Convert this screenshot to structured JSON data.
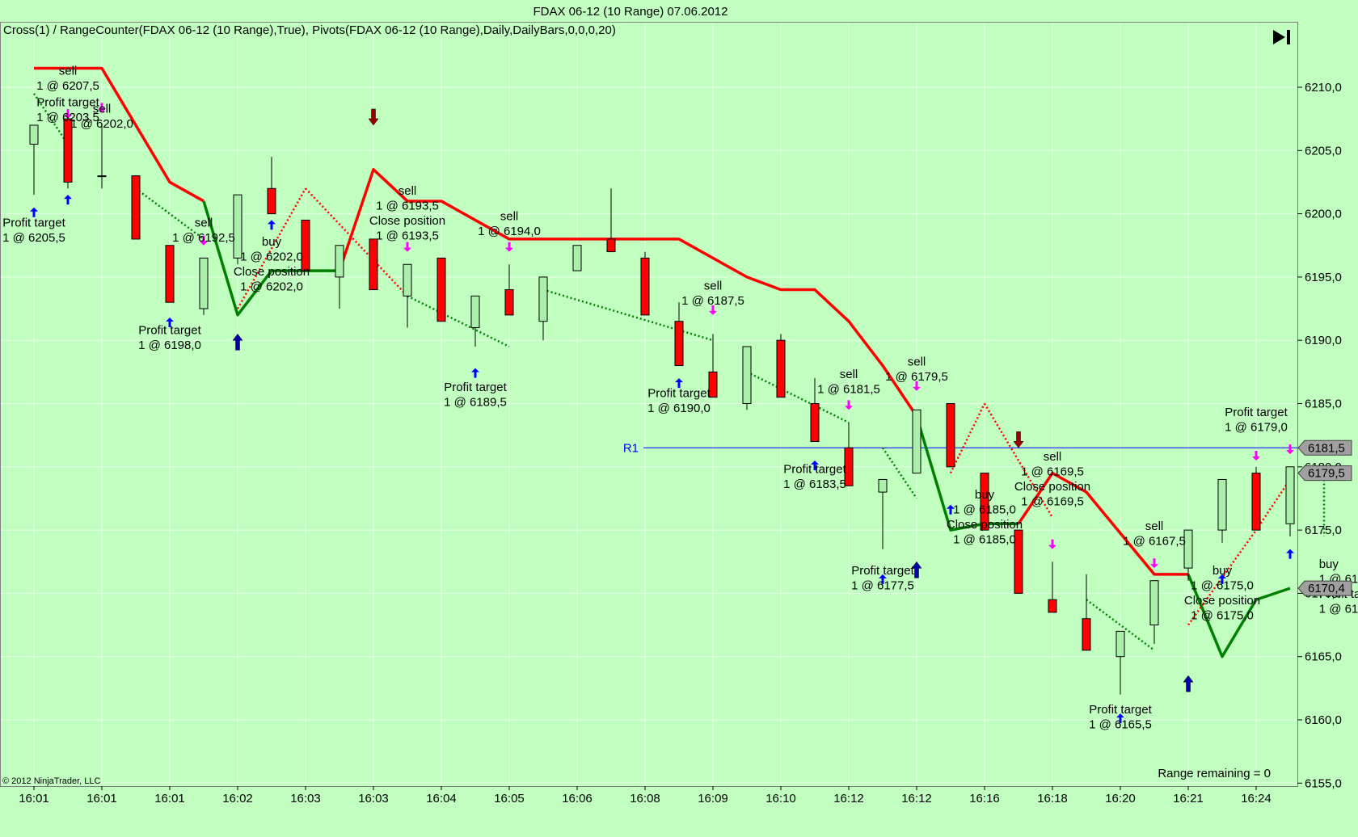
{
  "window_title": "FDAX 06-12 (10 Range)  07.06.2012",
  "indicator_label": "Cross(1) / RangeCounter(FDAX 06-12 (10 Range),True), Pivots(FDAX 06-12 (10 Range),Daily,DailyBars,0,0,0,20)",
  "copyright": "© 2012 NinjaTrader, LLC",
  "range_remaining": "Range remaining = 0",
  "play_button_icon": "skip-to-end-icon",
  "colors": {
    "background": "#c0ffc0",
    "up_bar": "#aaf0aa",
    "down_bar": "#ff0000",
    "line_red": "#ff0000",
    "line_green": "#008000",
    "pivot_line": "#0000ff",
    "sell_arrow": "#ff00ff",
    "buy_arrow": "#0000ff",
    "entry_arrow_red": "#990000"
  },
  "chart_data": {
    "type": "candlestick",
    "title": "FDAX 06-12 (10 Range)  07.06.2012",
    "ylim": [
      6155.0,
      6213.5
    ],
    "y_ticks": [
      "6155,0",
      "6160,0",
      "6165,0",
      "6170,0",
      "6175,0",
      "6180,0",
      "6185,0",
      "6190,0",
      "6195,0",
      "6200,0",
      "6205,0",
      "6210,0"
    ],
    "y_tick_values": [
      6155,
      6160,
      6165,
      6170,
      6175,
      6180,
      6185,
      6190,
      6195,
      6200,
      6205,
      6210
    ],
    "x_ticks": [
      "16:01",
      "16:01",
      "16:01",
      "16:02",
      "16:03",
      "16:03",
      "16:04",
      "16:05",
      "16:06",
      "16:08",
      "16:09",
      "16:10",
      "16:12",
      "16:12",
      "16:16",
      "16:18",
      "16:20",
      "16:21",
      "16:24"
    ],
    "x_tick_bars": [
      0,
      2,
      4,
      6,
      8,
      10,
      12,
      14,
      16,
      18,
      20,
      22,
      24,
      26,
      28,
      30,
      32,
      34,
      36
    ],
    "candles": [
      {
        "o": 6205.5,
        "h": 6207.0,
        "l": 6201.5,
        "c": 6207.0
      },
      {
        "o": 6207.5,
        "h": 6207.5,
        "l": 6202.0,
        "c": 6202.5
      },
      {
        "o": 6203.0,
        "h": 6207.0,
        "l": 6202.0,
        "c": 6203.0
      },
      {
        "o": 6203.0,
        "h": 6203.0,
        "l": 6198.0,
        "c": 6198.0
      },
      {
        "o": 6197.5,
        "h": 6197.5,
        "l": 6193.0,
        "c": 6193.0
      },
      {
        "o": 6192.5,
        "h": 6196.5,
        "l": 6192.0,
        "c": 6196.5
      },
      {
        "o": 6196.5,
        "h": 6201.5,
        "l": 6196.0,
        "c": 6201.5
      },
      {
        "o": 6202.0,
        "h": 6204.5,
        "l": 6200.0,
        "c": 6200.0
      },
      {
        "o": 6199.5,
        "h": 6199.5,
        "l": 6195.5,
        "c": 6195.5
      },
      {
        "o": 6195.0,
        "h": 6197.5,
        "l": 6192.5,
        "c": 6197.5
      },
      {
        "o": 6198.0,
        "h": 6198.0,
        "l": 6194.0,
        "c": 6194.0
      },
      {
        "o": 6193.5,
        "h": 6196.0,
        "l": 6191.0,
        "c": 6196.0
      },
      {
        "o": 6196.5,
        "h": 6196.5,
        "l": 6191.5,
        "c": 6191.5
      },
      {
        "o": 6191.0,
        "h": 6193.5,
        "l": 6189.5,
        "c": 6193.5
      },
      {
        "o": 6194.0,
        "h": 6196.0,
        "l": 6192.0,
        "c": 6192.0
      },
      {
        "o": 6191.5,
        "h": 6195.0,
        "l": 6190.0,
        "c": 6195.0
      },
      {
        "o": 6195.5,
        "h": 6197.5,
        "l": 6195.5,
        "c": 6197.5
      },
      {
        "o": 6198.0,
        "h": 6202.0,
        "l": 6197.0,
        "c": 6197.0
      },
      {
        "o": 6196.5,
        "h": 6197.0,
        "l": 6192.0,
        "c": 6192.0
      },
      {
        "o": 6191.5,
        "h": 6193.0,
        "l": 6188.0,
        "c": 6188.0
      },
      {
        "o": 6187.5,
        "h": 6190.5,
        "l": 6185.5,
        "c": 6185.5
      },
      {
        "o": 6185.0,
        "h": 6189.5,
        "l": 6184.5,
        "c": 6189.5
      },
      {
        "o": 6190.0,
        "h": 6190.5,
        "l": 6185.5,
        "c": 6185.5
      },
      {
        "o": 6185.0,
        "h": 6187.0,
        "l": 6182.0,
        "c": 6182.0
      },
      {
        "o": 6181.5,
        "h": 6183.5,
        "l": 6178.5,
        "c": 6178.5
      },
      {
        "o": 6178.0,
        "h": 6179.0,
        "l": 6173.5,
        "c": 6179.0
      },
      {
        "o": 6179.5,
        "h": 6184.5,
        "l": 6179.5,
        "c": 6184.5
      },
      {
        "o": 6185.0,
        "h": 6185.0,
        "l": 6180.0,
        "c": 6180.0
      },
      {
        "o": 6179.5,
        "h": 6179.5,
        "l": 6175.0,
        "c": 6175.0
      },
      {
        "o": 6175.0,
        "h": 6175.0,
        "l": 6170.0,
        "c": 6170.0
      },
      {
        "o": 6169.5,
        "h": 6172.5,
        "l": 6168.5,
        "c": 6168.5
      },
      {
        "o": 6168.0,
        "h": 6171.5,
        "l": 6165.5,
        "c": 6165.5
      },
      {
        "o": 6165.0,
        "h": 6167.0,
        "l": 6162.0,
        "c": 6167.0
      },
      {
        "o": 6167.5,
        "h": 6171.0,
        "l": 6166.0,
        "c": 6171.0
      },
      {
        "o": 6172.0,
        "h": 6175.0,
        "l": 6171.0,
        "c": 6175.0
      },
      {
        "o": 6175.0,
        "h": 6179.0,
        "l": 6174.0,
        "c": 6179.0
      },
      {
        "o": 6179.5,
        "h": 6180.0,
        "l": 6175.0,
        "c": 6175.0
      },
      {
        "o": 6175.5,
        "h": 6180.0,
        "l": 6174.5,
        "c": 6180.0
      }
    ],
    "line_series": [
      {
        "name": "",
        "color": "#ff0000",
        "points": [
          [
            0,
            6211.5
          ],
          [
            2,
            6211.5
          ],
          [
            4,
            6202.5
          ],
          [
            5,
            6201.0
          ]
        ]
      },
      {
        "name": "",
        "color": "#008000",
        "points": [
          [
            5,
            6201.0
          ],
          [
            6,
            6192.0
          ],
          [
            7,
            6195.5
          ],
          [
            9,
            6195.5
          ]
        ]
      },
      {
        "name": "",
        "color": "#ff0000",
        "points": [
          [
            9,
            6195.5
          ],
          [
            10,
            6203.5
          ],
          [
            11,
            6201.0
          ],
          [
            12,
            6201.0
          ],
          [
            14,
            6198.0
          ],
          [
            19,
            6198.0
          ],
          [
            21,
            6195.0
          ],
          [
            22,
            6194.0
          ],
          [
            23,
            6194.0
          ],
          [
            24,
            6191.5
          ],
          [
            25,
            6188.0
          ],
          [
            26,
            6184.0
          ]
        ]
      },
      {
        "name": "",
        "color": "#008000",
        "points": [
          [
            26,
            6184.0
          ],
          [
            27,
            6175.0
          ],
          [
            28,
            6175.5
          ],
          [
            29,
            6175.5
          ]
        ]
      },
      {
        "name": "",
        "color": "#ff0000",
        "points": [
          [
            29,
            6175.5
          ],
          [
            30,
            6179.5
          ],
          [
            31,
            6178.0
          ],
          [
            33,
            6171.5
          ],
          [
            34,
            6171.5
          ]
        ]
      },
      {
        "name": "",
        "color": "#008000",
        "points": [
          [
            34,
            6171.5
          ],
          [
            35,
            6165.0
          ],
          [
            36,
            6169.5
          ],
          [
            37,
            6170.4
          ]
        ]
      }
    ],
    "trade_paths": [
      {
        "color": "#008000",
        "points": [
          [
            0,
            6209.5
          ],
          [
            1,
            6205.5
          ]
        ]
      },
      {
        "color": "#008000",
        "points": [
          [
            3,
            6202.0
          ],
          [
            5,
            6198.0
          ]
        ]
      },
      {
        "color": "#ff0000",
        "points": [
          [
            6,
            6192.5
          ],
          [
            8,
            6202.0
          ]
        ]
      },
      {
        "color": "#ff0000",
        "points": [
          [
            8,
            6202.0
          ],
          [
            11,
            6193.5
          ]
        ]
      },
      {
        "color": "#008000",
        "points": [
          [
            11,
            6193.5
          ],
          [
            14,
            6189.5
          ]
        ]
      },
      {
        "color": "#008000",
        "points": [
          [
            15,
            6194.0
          ],
          [
            20,
            6190.0
          ]
        ]
      },
      {
        "color": "#008000",
        "points": [
          [
            21,
            6187.5
          ],
          [
            24,
            6183.5
          ]
        ]
      },
      {
        "color": "#008000",
        "points": [
          [
            25,
            6181.5
          ],
          [
            26,
            6177.5
          ]
        ]
      },
      {
        "color": "#ff0000",
        "points": [
          [
            27,
            6179.5
          ],
          [
            28,
            6185.0
          ]
        ]
      },
      {
        "color": "#ff0000",
        "points": [
          [
            28,
            6185.0
          ],
          [
            30,
            6176.0
          ]
        ]
      },
      {
        "color": "#008000",
        "points": [
          [
            31,
            6169.5
          ],
          [
            33,
            6165.5
          ]
        ]
      },
      {
        "color": "#ff0000",
        "points": [
          [
            34,
            6167.5
          ],
          [
            36,
            6175.0
          ]
        ]
      },
      {
        "color": "#ff0000",
        "points": [
          [
            36,
            6175.0
          ],
          [
            37,
            6179.0
          ]
        ]
      },
      {
        "color": "#008000",
        "points": [
          [
            38,
            6179.0
          ],
          [
            38,
            6174.5
          ]
        ]
      }
    ],
    "pivot": {
      "label": "R1",
      "value": 6181.5,
      "from_bar": 18
    },
    "price_markers": [
      {
        "label": "6181,5",
        "value": 6181.5
      },
      {
        "label": "6179,5",
        "value": 6179.5
      },
      {
        "label": "6170,4",
        "value": 6170.4
      }
    ],
    "sell_markers": [
      {
        "bar": 1,
        "price": 6207.5
      },
      {
        "bar": 2,
        "price": 6208.0
      },
      {
        "bar": 5,
        "price": 6197.5
      },
      {
        "bar": 11,
        "price": 6197.0
      },
      {
        "bar": 14,
        "price": 6197.0
      },
      {
        "bar": 20,
        "price": 6192.0
      },
      {
        "bar": 24,
        "price": 6184.5
      },
      {
        "bar": 26,
        "price": 6186.0
      },
      {
        "bar": 30,
        "price": 6173.5
      },
      {
        "bar": 33,
        "price": 6172.0
      },
      {
        "bar": 36,
        "price": 6180.5
      },
      {
        "bar": 37,
        "price": 6181.0
      }
    ],
    "buy_markers": [
      {
        "bar": 0,
        "price": 6200.5
      },
      {
        "bar": 1,
        "price": 6201.5
      },
      {
        "bar": 4,
        "price": 6191.8
      },
      {
        "bar": 7,
        "price": 6199.5
      },
      {
        "bar": 13,
        "price": 6187.8
      },
      {
        "bar": 19,
        "price": 6187.0
      },
      {
        "bar": 23,
        "price": 6180.5
      },
      {
        "bar": 25,
        "price": 6171.5
      },
      {
        "bar": 27,
        "price": 6177.0
      },
      {
        "bar": 32,
        "price": 6160.5
      },
      {
        "bar": 35,
        "price": 6171.5
      },
      {
        "bar": 37,
        "price": 6173.5
      }
    ],
    "entry_markers": [
      {
        "kind": "short",
        "bar": 10,
        "price": 6207.0
      },
      {
        "kind": "short",
        "bar": 29,
        "price": 6181.5
      },
      {
        "kind": "long",
        "bar": 6,
        "price": 6190.5
      },
      {
        "kind": "long",
        "bar": 26,
        "price": 6172.5
      },
      {
        "kind": "long",
        "bar": 34,
        "price": 6163.5
      }
    ],
    "annotations": [
      {
        "lines": [
          "sell",
          "1 @ 6207,5"
        ],
        "bar": 1,
        "price": 6211.0
      },
      {
        "lines": [
          "Profit target",
          "1 @ 6203,5"
        ],
        "bar": 1,
        "price": 6208.5
      },
      {
        "lines": [
          "sell",
          "1 @ 6202,0"
        ],
        "bar": 2,
        "price": 6208.0
      },
      {
        "lines": [
          "Profit target",
          "1 @ 6205,5"
        ],
        "bar": 0,
        "price": 6199.0
      },
      {
        "lines": [
          "sell",
          "1 @ 6192,5"
        ],
        "bar": 5,
        "price": 6199.0
      },
      {
        "lines": [
          "Profit target",
          "1 @ 6198,0"
        ],
        "bar": 4,
        "price": 6190.5
      },
      {
        "lines": [
          "buy",
          "1 @ 6202,0",
          "Close position",
          "1 @ 6202,0"
        ],
        "bar": 7,
        "price": 6197.5
      },
      {
        "lines": [
          "sell",
          "1 @ 6193,5",
          "Close position",
          "1 @ 6193,5"
        ],
        "bar": 11,
        "price": 6201.5
      },
      {
        "lines": [
          "sell",
          "1 @ 6194,0"
        ],
        "bar": 14,
        "price": 6199.5
      },
      {
        "lines": [
          "Profit target",
          "1 @ 6189,5"
        ],
        "bar": 13,
        "price": 6186.0
      },
      {
        "lines": [
          "sell",
          "1 @ 6187,5"
        ],
        "bar": 20,
        "price": 6194.0
      },
      {
        "lines": [
          "Profit target",
          "1 @ 6190,0"
        ],
        "bar": 19,
        "price": 6185.5
      },
      {
        "lines": [
          "sell",
          "1 @ 6181,5"
        ],
        "bar": 24,
        "price": 6187.0
      },
      {
        "lines": [
          "sell",
          "1 @ 6179,5"
        ],
        "bar": 26,
        "price": 6188.0
      },
      {
        "lines": [
          "Profit target",
          "1 @ 6183,5"
        ],
        "bar": 23,
        "price": 6179.5
      },
      {
        "lines": [
          "Profit target",
          "1 @ 6177,5"
        ],
        "bar": 25,
        "price": 6171.5
      },
      {
        "lines": [
          "buy",
          "1 @ 6185,0",
          "Close position",
          "1 @ 6185,0"
        ],
        "bar": 28,
        "price": 6177.5
      },
      {
        "lines": [
          "sell",
          "1 @ 6169,5",
          "Close position",
          "1 @ 6169,5"
        ],
        "bar": 30,
        "price": 6180.5
      },
      {
        "lines": [
          "sell",
          "1 @ 6167,5"
        ],
        "bar": 33,
        "price": 6175.0
      },
      {
        "lines": [
          "buy",
          "1 @ 6175,0",
          "Close position",
          "1 @ 6175,0"
        ],
        "bar": 35,
        "price": 6171.5
      },
      {
        "lines": [
          "Profit target",
          "1 @ 6179,0"
        ],
        "bar": 36,
        "price": 6184.0
      },
      {
        "lines": [
          "Profit target",
          "1 @ 6165,5"
        ],
        "bar": 32,
        "price": 6160.5
      },
      {
        "lines": [
          "buy",
          "1 @ 61",
          "Profit ta",
          "1 @ 61"
        ],
        "bar": 37.85,
        "price": 6172.0,
        "align": "start"
      }
    ]
  }
}
